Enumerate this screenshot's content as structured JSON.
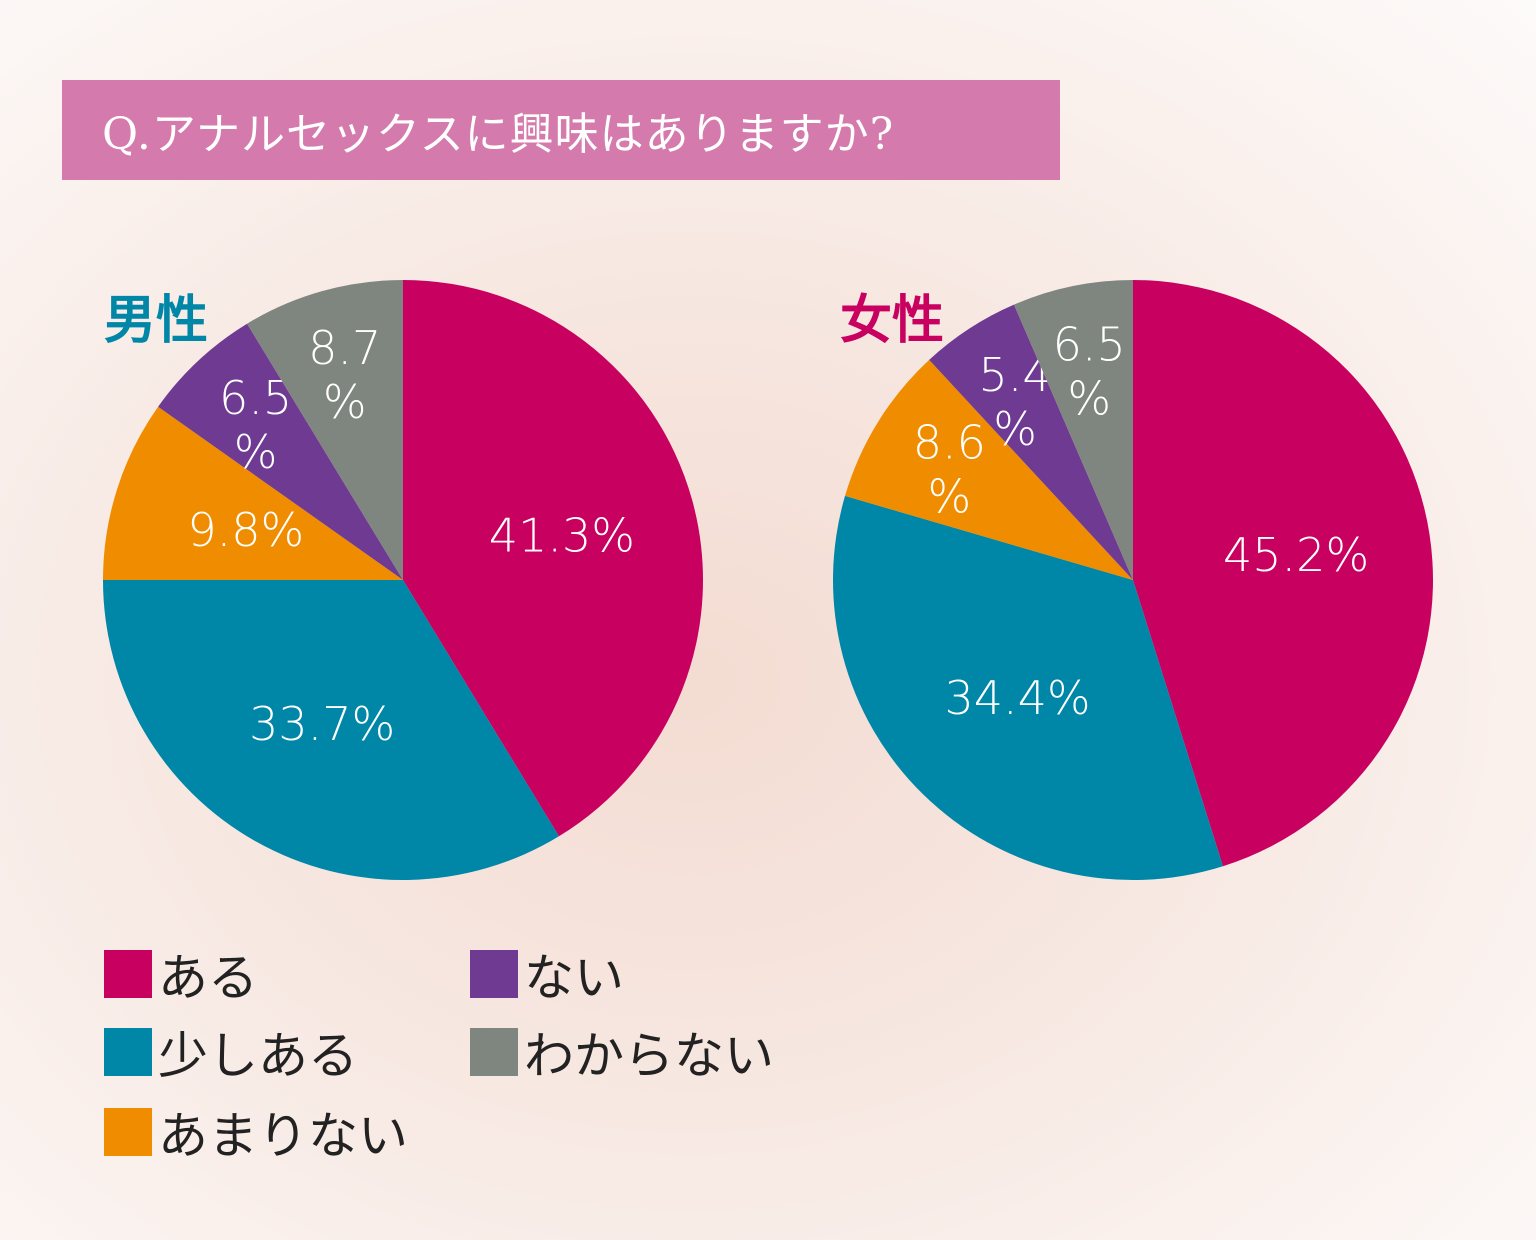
{
  "title": "Q.アナルセックスに興味はありますか?",
  "chart_data": [
    {
      "type": "pie",
      "title": "男性",
      "categories": [
        "ある",
        "少しある",
        "あまりない",
        "ない",
        "わからない"
      ],
      "values": [
        41.3,
        33.7,
        9.8,
        6.5,
        8.7
      ],
      "unit": "%",
      "start": "12 o'clock",
      "direction": "clockwise"
    },
    {
      "type": "pie",
      "title": "女性",
      "categories": [
        "ある",
        "少しある",
        "あまりない",
        "ない",
        "わからない"
      ],
      "values": [
        45.2,
        34.4,
        8.6,
        5.4,
        6.5
      ],
      "unit": "%",
      "start": "12 o'clock",
      "direction": "clockwise"
    }
  ],
  "colors": [
    "#c8005f",
    "#0086a6",
    "#f08c00",
    "#6e3a92",
    "#7f857f"
  ],
  "legend": {
    "placement": "bottom-left",
    "items": [
      "ある",
      "少しある",
      "あまりない",
      "ない",
      "わからない"
    ]
  }
}
